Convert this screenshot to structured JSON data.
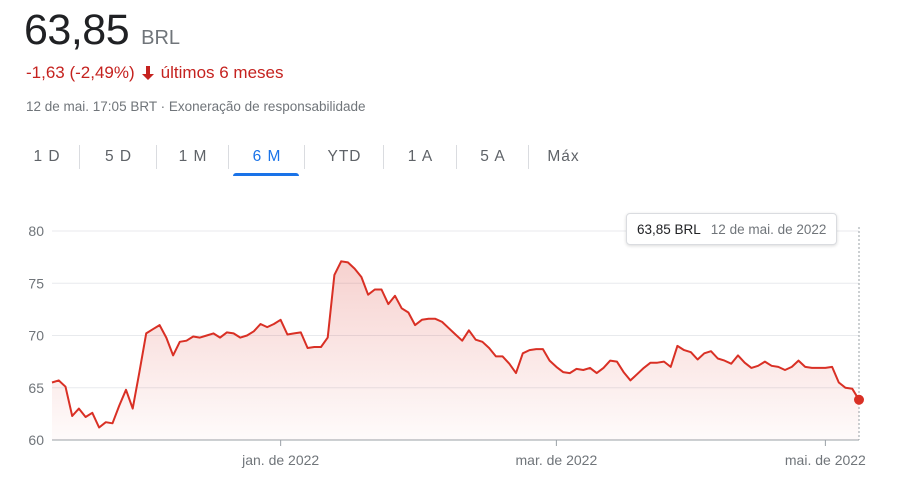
{
  "header": {
    "price": "63,85",
    "currency": "BRL",
    "change": "-1,63 (-2,49%)",
    "period": "últimos 6 meses",
    "timestamp": "12 de mai. 17:05 BRT",
    "separator": "·",
    "disclaimer": "Exoneração de responsabilidade"
  },
  "tabs": [
    {
      "label": "1 D",
      "active": false
    },
    {
      "label": "5 D",
      "active": false
    },
    {
      "label": "1 M",
      "active": false
    },
    {
      "label": "6 M",
      "active": true
    },
    {
      "label": "YTD",
      "active": false
    },
    {
      "label": "1 A",
      "active": false
    },
    {
      "label": "5 A",
      "active": false
    },
    {
      "label": "Máx",
      "active": false
    }
  ],
  "tooltip": {
    "price": "63,85 BRL",
    "date": "12 de mai. de 2022"
  },
  "colors": {
    "accent": "#1a73e8",
    "negative": "#c5221f",
    "line": "#d93025",
    "grid": "#e8eaed"
  },
  "icons": {
    "change_arrow": "arrow-down-icon"
  },
  "chart_data": {
    "type": "area",
    "title": "",
    "xlabel": "",
    "ylabel": "",
    "ylim": [
      60,
      80
    ],
    "yticks": [
      60,
      65,
      70,
      75,
      80
    ],
    "xtick_labels": [
      {
        "label": "jan. de 2022",
        "index": 34
      },
      {
        "label": "mar. de 2022",
        "index": 75
      },
      {
        "label": "mai. de 2022",
        "index": 115
      }
    ],
    "grid": true,
    "values": [
      65.5,
      65.7,
      65.1,
      62.3,
      63.0,
      62.2,
      62.6,
      61.2,
      61.7,
      61.6,
      63.3,
      64.8,
      63.0,
      66.5,
      70.2,
      70.6,
      71.0,
      69.8,
      68.1,
      69.4,
      69.5,
      69.9,
      69.8,
      70.0,
      70.2,
      69.8,
      70.3,
      70.2,
      69.8,
      70.0,
      70.4,
      71.1,
      70.8,
      71.1,
      71.5,
      70.1,
      70.2,
      70.3,
      68.8,
      68.9,
      68.9,
      69.8,
      75.8,
      77.1,
      77.0,
      76.4,
      75.6,
      73.9,
      74.4,
      74.4,
      73.0,
      73.8,
      72.6,
      72.2,
      71.0,
      71.5,
      71.6,
      71.6,
      71.3,
      70.7,
      70.1,
      69.5,
      70.5,
      69.6,
      69.4,
      68.8,
      68.0,
      68.0,
      67.3,
      66.4,
      68.3,
      68.6,
      68.7,
      68.7,
      67.6,
      67.0,
      66.5,
      66.4,
      66.8,
      66.7,
      66.9,
      66.4,
      66.9,
      67.6,
      67.5,
      66.5,
      65.7,
      66.3,
      66.9,
      67.4,
      67.4,
      67.5,
      67.0,
      69.0,
      68.6,
      68.4,
      67.7,
      68.3,
      68.5,
      67.8,
      67.6,
      67.3,
      68.1,
      67.4,
      66.9,
      67.1,
      67.5,
      67.1,
      67.0,
      66.7,
      67.0,
      67.6,
      67.0,
      66.9,
      66.9,
      66.9,
      67.0,
      65.5,
      65.0,
      64.9,
      63.85
    ]
  }
}
